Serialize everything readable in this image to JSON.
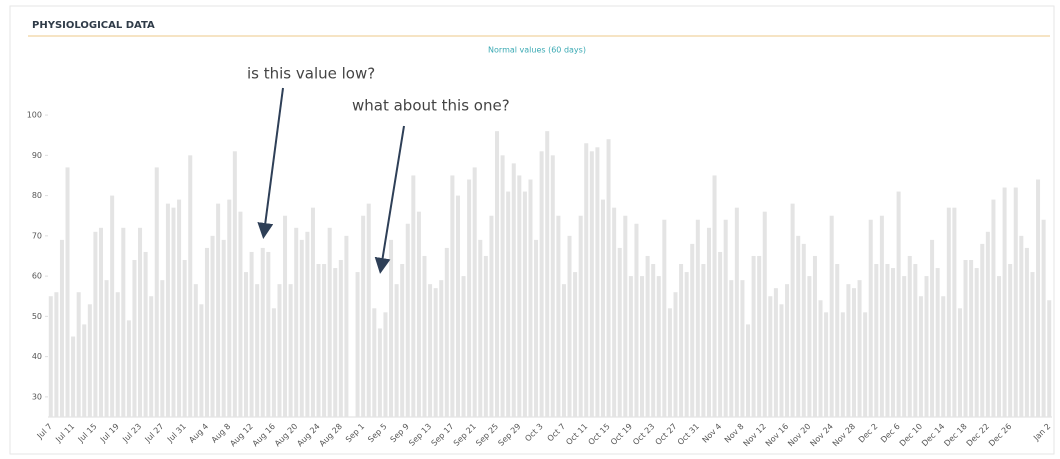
{
  "chart_data": {
    "type": "bar",
    "title": "PHYSIOLOGICAL DATA",
    "subtitle": "Normal values (60 days)",
    "annotations": [
      "is this value low?",
      "what about this one?"
    ],
    "color": "#e4e4e4",
    "grid": false,
    "ylim": [
      25,
      103
    ],
    "yticks": [
      30,
      40,
      50,
      60,
      70,
      80,
      90,
      100
    ],
    "categories": [
      "Jul 7",
      null,
      null,
      null,
      "Jul 11",
      null,
      null,
      null,
      "Jul 15",
      null,
      null,
      null,
      "Jul 19",
      null,
      null,
      null,
      "Jul 23",
      null,
      null,
      null,
      "Jul 27",
      null,
      null,
      null,
      "Jul 31",
      null,
      null,
      null,
      "Aug 4",
      null,
      null,
      null,
      "Aug 8",
      null,
      null,
      null,
      "Aug 12",
      null,
      null,
      null,
      "Aug 16",
      null,
      null,
      null,
      "Aug 20",
      null,
      null,
      null,
      "Aug 24",
      null,
      null,
      null,
      "Aug 28",
      null,
      null,
      null,
      "Sep 1",
      null,
      null,
      null,
      "Sep 5",
      null,
      null,
      null,
      "Sep 9",
      null,
      null,
      null,
      "Sep 13",
      null,
      null,
      null,
      "Sep 17",
      null,
      null,
      null,
      "Sep 21",
      null,
      null,
      null,
      "Sep 25",
      null,
      null,
      null,
      "Sep 29",
      null,
      null,
      null,
      "Oct 3",
      null,
      null,
      null,
      "Oct 7",
      null,
      null,
      null,
      "Oct 11",
      null,
      null,
      null,
      "Oct 15",
      null,
      null,
      null,
      "Oct 19",
      null,
      null,
      null,
      "Oct 23",
      null,
      null,
      null,
      "Oct 27",
      null,
      null,
      null,
      "Oct 31",
      null,
      null,
      null,
      "Nov 4",
      null,
      null,
      null,
      "Nov 8",
      null,
      null,
      null,
      "Nov 12",
      null,
      null,
      null,
      "Nov 16",
      null,
      null,
      null,
      "Nov 20",
      null,
      null,
      null,
      "Nov 24",
      null,
      null,
      null,
      "Nov 28",
      null,
      null,
      null,
      "Dec 2",
      null,
      null,
      null,
      "Dec 6",
      null,
      null,
      null,
      "Dec 10",
      null,
      null,
      null,
      "Dec 14",
      null,
      null,
      null,
      "Dec 18",
      null,
      null,
      null,
      "Dec 22",
      null,
      null,
      null,
      "Dec 26",
      null,
      null,
      null,
      null,
      null,
      null,
      "Jan 2"
    ],
    "values": [
      55,
      56,
      69,
      87,
      45,
      56,
      48,
      53,
      71,
      72,
      59,
      80,
      56,
      72,
      49,
      64,
      72,
      66,
      55,
      87,
      59,
      78,
      77,
      79,
      64,
      90,
      58,
      53,
      67,
      70,
      78,
      69,
      79,
      91,
      76,
      61,
      66,
      58,
      67,
      66,
      52,
      58,
      75,
      58,
      72,
      69,
      71,
      77,
      63,
      63,
      72,
      62,
      64,
      70,
      null,
      61,
      75,
      78,
      52,
      47,
      51,
      69,
      58,
      63,
      73,
      85,
      76,
      65,
      58,
      57,
      59,
      67,
      85,
      80,
      60,
      84,
      87,
      69,
      65,
      75,
      96,
      90,
      81,
      88,
      85,
      81,
      84,
      69,
      91,
      96,
      90,
      75,
      58,
      70,
      61,
      75,
      93,
      91,
      92,
      79,
      94,
      77,
      67,
      75,
      60,
      73,
      60,
      65,
      63,
      60,
      74,
      52,
      56,
      63,
      61,
      68,
      74,
      63,
      72,
      85,
      66,
      74,
      59,
      77,
      59,
      48,
      65,
      65,
      76,
      55,
      57,
      53,
      58,
      78,
      70,
      68,
      60,
      65,
      54,
      51,
      75,
      63,
      51,
      58,
      57,
      59,
      51,
      74,
      63,
      75,
      63,
      62,
      81,
      60,
      65,
      63,
      55,
      60,
      69,
      62,
      55,
      77,
      77,
      52,
      64,
      64,
      62,
      68,
      71,
      79,
      60,
      82,
      63,
      82,
      70,
      67,
      61,
      84,
      74,
      54
    ]
  }
}
